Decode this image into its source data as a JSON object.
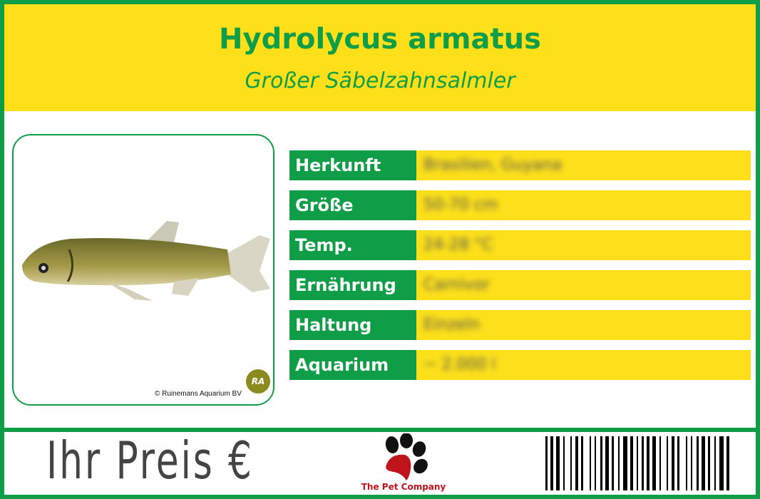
{
  "header": {
    "title": "Hydrolycus armatus",
    "subtitle": "Großer Säbelzahnsalmler"
  },
  "photo": {
    "copyright": "© Ruinemans Aquarium BV",
    "logo_text": "RA"
  },
  "details": [
    {
      "label": "Herkunft",
      "value": "Brasilien, Guyana"
    },
    {
      "label": "Größe",
      "value": "50-70 cm"
    },
    {
      "label": "Temp.",
      "value": "24-28 °C"
    },
    {
      "label": "Ernährung",
      "value": "Carnivor"
    },
    {
      "label": "Haltung",
      "value": "Einzeln"
    },
    {
      "label": "Aquarium",
      "value": "~ 2.000 l"
    }
  ],
  "footer": {
    "price_label": "Ihr Preis €",
    "company": "The Pet Company",
    "logo_icon": "paw-icon"
  },
  "colors": {
    "green": "#0f9d48",
    "yellow": "#fde01a",
    "price_gray": "#444444",
    "brand_red": "#c0141c"
  }
}
